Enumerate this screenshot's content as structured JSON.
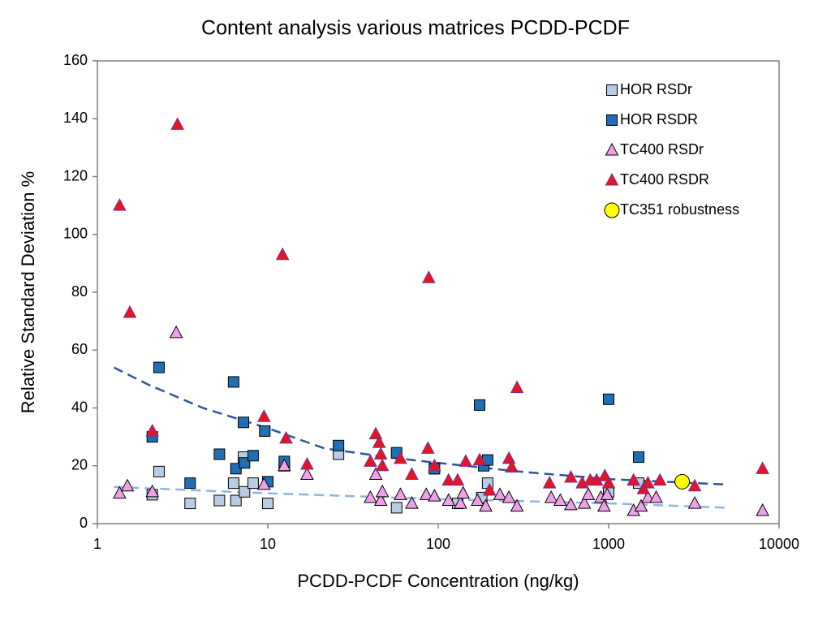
{
  "chart_data": {
    "type": "scatter",
    "title": "Content analysis various matrices PCDD-PCDF",
    "x_label": "PCDD-PCDF Concentration (ng/kg)",
    "y_label": "Relative Standard Deviation %",
    "x_log": true,
    "xlim": [
      1,
      10000
    ],
    "xticks": [
      1,
      10,
      100,
      1000,
      10000
    ],
    "ylim": [
      0,
      160
    ],
    "yticks": [
      0,
      20,
      40,
      60,
      80,
      100,
      120,
      140,
      160
    ],
    "legend": "upper-right",
    "series": [
      {
        "name": "HOR RSDr",
        "color": "#b8cce4",
        "marker": "square",
        "x": [
          2.1,
          2.3,
          3.5,
          5.2,
          6.3,
          6.5,
          7.2,
          7.3,
          8.2,
          10,
          12.5,
          26,
          57,
          95,
          130,
          180,
          195,
          1000,
          1500
        ],
        "values": [
          10,
          18,
          7,
          8,
          14,
          8,
          23,
          11,
          14,
          7,
          20,
          24,
          5.5,
          19,
          7,
          9,
          14,
          11,
          14
        ]
      },
      {
        "name": "HOR RSDR",
        "color": "#1f6fb5",
        "marker": "square",
        "x": [
          2.1,
          2.3,
          3.5,
          5.2,
          6.3,
          6.5,
          7.2,
          7.3,
          8.2,
          9.6,
          10,
          12.5,
          26,
          57,
          95,
          175,
          185,
          195,
          1000,
          1500
        ],
        "values": [
          30,
          54,
          14,
          24,
          49,
          19,
          35,
          21,
          23.5,
          32,
          14.5,
          21.5,
          27,
          24.5,
          19,
          41,
          20,
          22,
          43,
          23
        ]
      },
      {
        "name": "TC400 RSDr",
        "color": "#f0a0e8",
        "marker": "triangle",
        "x": [
          1.35,
          1.5,
          2.1,
          2.9,
          9.5,
          12.5,
          17,
          40,
          43,
          46,
          47,
          60,
          70,
          85,
          95,
          115,
          135,
          140,
          170,
          190,
          230,
          260,
          290,
          460,
          520,
          600,
          720,
          760,
          900,
          940,
          980,
          1400,
          1550,
          1700,
          1900,
          3200,
          8000
        ],
        "values": [
          10.5,
          13,
          11,
          66,
          13.5,
          20,
          17,
          9,
          17,
          8,
          11,
          10,
          7,
          10,
          9.5,
          8,
          7,
          10.5,
          8,
          6,
          10,
          9,
          6,
          9,
          8,
          6.5,
          7,
          10,
          9,
          6,
          10,
          4.5,
          6,
          9,
          9,
          7,
          4.5
        ]
      },
      {
        "name": "TC400 RSDR",
        "color": "#e8141e",
        "marker": "triangle",
        "x": [
          1.35,
          1.55,
          2.1,
          2.95,
          9.5,
          12.2,
          12.8,
          17,
          40,
          43,
          45,
          46,
          47,
          60,
          70,
          88,
          87,
          95,
          115,
          130,
          145,
          175,
          200,
          260,
          270,
          290,
          450,
          600,
          700,
          780,
          850,
          950,
          1000,
          1400,
          1600,
          1700,
          2000,
          3200,
          8000
        ],
        "values": [
          110,
          73,
          32,
          138,
          37,
          93,
          29.5,
          20.5,
          21.5,
          31,
          28,
          24,
          20,
          22.5,
          17,
          85,
          26,
          20,
          15,
          15,
          21.5,
          22,
          11.5,
          22.5,
          19.5,
          47,
          14,
          16,
          14,
          15,
          15,
          16.5,
          14,
          15,
          12,
          14,
          15,
          13,
          19
        ]
      },
      {
        "name": "TC351 robustness",
        "color": "#ffff00",
        "marker": "circle",
        "x": [
          2700
        ],
        "values": [
          14.5
        ]
      }
    ],
    "trendlines": [
      {
        "color": "#2f5597",
        "x": [
          1.25,
          2,
          4.16,
          10,
          21.5,
          50,
          100,
          300,
          1000,
          5000
        ],
        "values": [
          54,
          48,
          40,
          33,
          26,
          23,
          21,
          18,
          15.4,
          13.5
        ]
      },
      {
        "color": "#8db4e2",
        "x": [
          1.25,
          10,
          100,
          1000,
          5000
        ],
        "values": [
          12.7,
          10.5,
          8.5,
          7,
          5.5
        ]
      }
    ]
  }
}
